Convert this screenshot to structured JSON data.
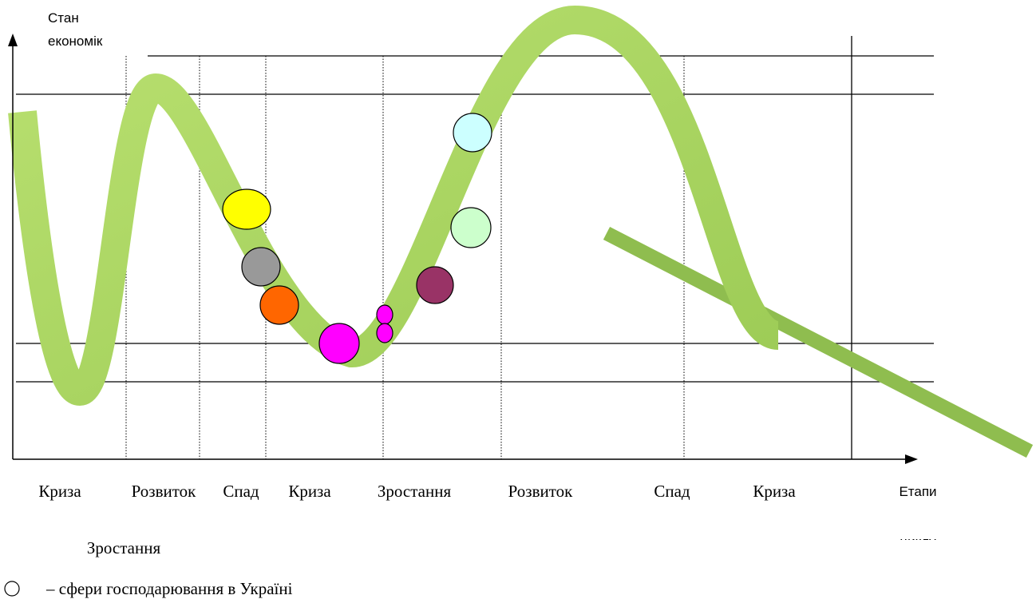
{
  "axes": {
    "y_label": [
      "Стан",
      "економік"
    ],
    "x_label": [
      "Етапи",
      "циклу"
    ]
  },
  "stages": [
    "Криза",
    "Розвиток",
    "Спад",
    "Криза",
    "Зростання",
    "Розвиток",
    "Спад",
    "Криза"
  ],
  "stage_second_line": "Зростання",
  "legend": {
    "text": "– сфери господарювання в Україні"
  }
}
